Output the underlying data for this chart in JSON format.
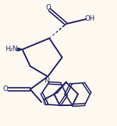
{
  "bg_color": "#fdf8f0",
  "line_color": "#2a2a6a",
  "text_color": "#2a2a6a",
  "bond_lw": 1.4,
  "figsize": [
    1.47,
    1.58
  ],
  "dpi": 100,
  "xlim": [
    0,
    147
  ],
  "ylim": [
    0,
    158
  ]
}
